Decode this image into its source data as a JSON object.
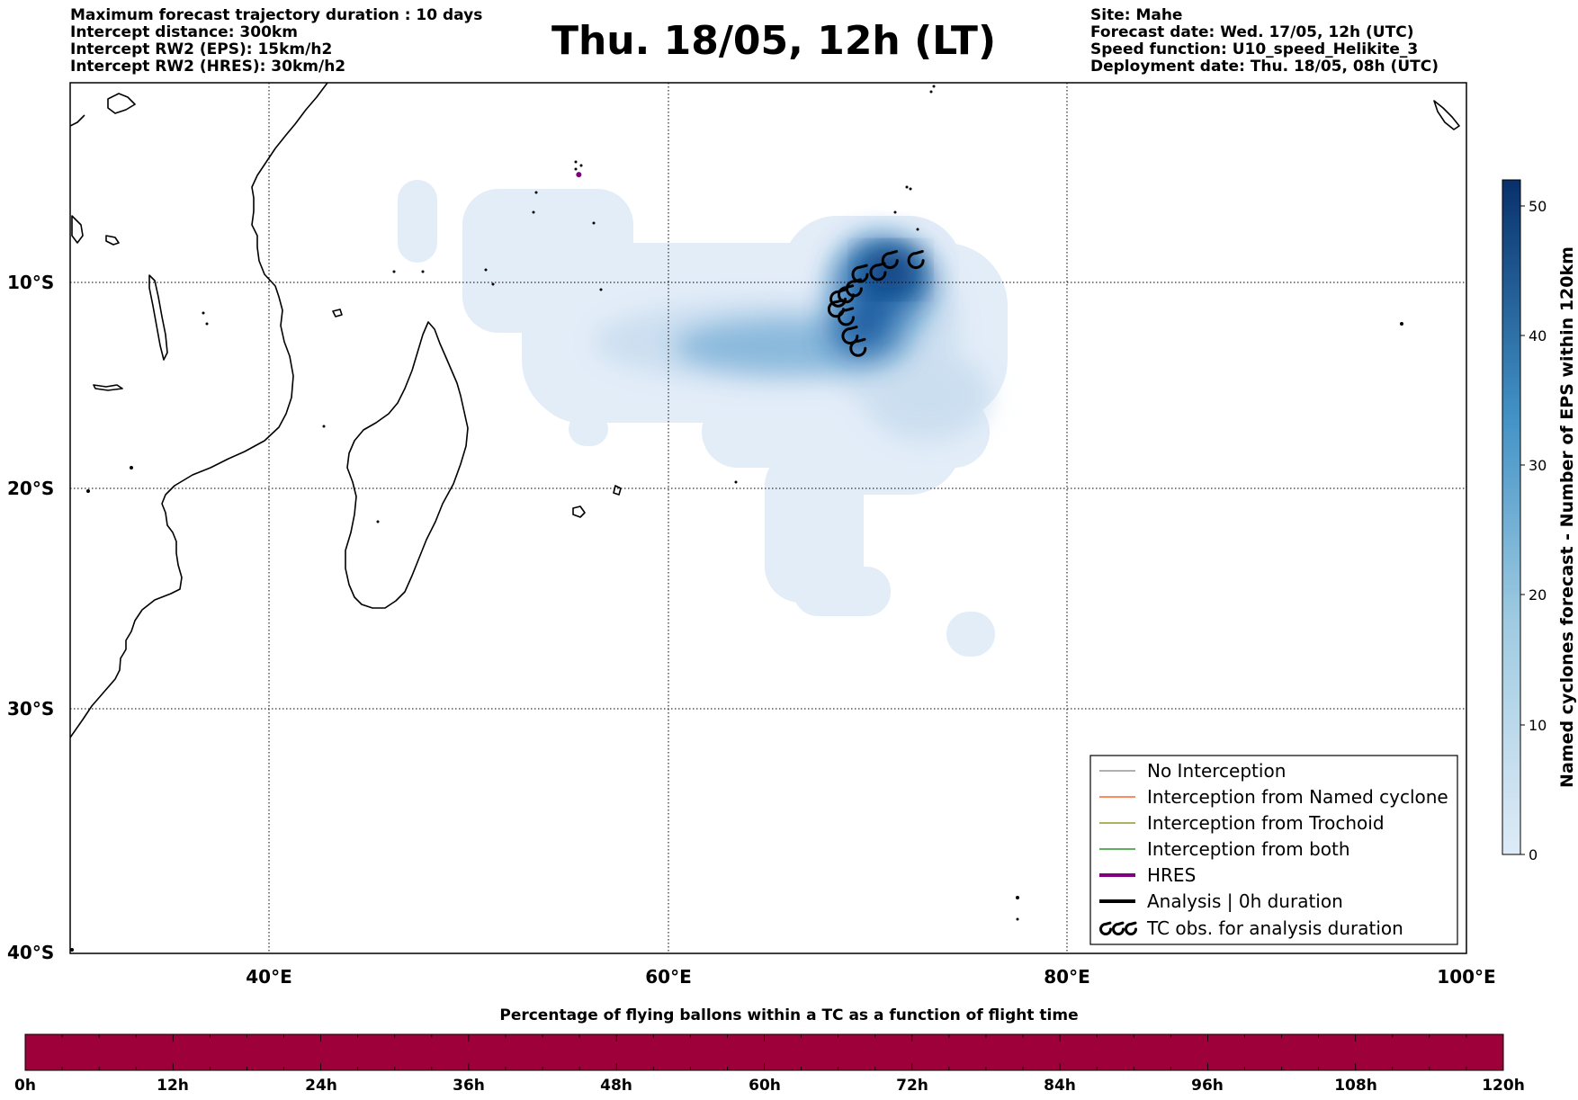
{
  "header_left": [
    "Maximum forecast trajectory duration : 10 days",
    "Intercept distance: 300km",
    "Intercept RW2 (EPS):  15km/h2",
    "Intercept RW2 (HRES): 30km/h2"
  ],
  "header_right": [
    "Site: Mahe",
    "Forecast date: Wed. 17/05, 12h (UTC)",
    "Speed function: U10_speed_Helikite_3",
    "Deployment date: Thu. 18/05, 08h (UTC)"
  ],
  "title": "Thu. 18/05, 12h (LT)",
  "map": {
    "lon_range": [
      30,
      100
    ],
    "lat_range": [
      -40,
      0
    ],
    "lon_ticks": [
      {
        "value": 40,
        "label": "40°E"
      },
      {
        "value": 60,
        "label": "60°E"
      },
      {
        "value": 80,
        "label": "80°E"
      },
      {
        "value": 100,
        "label": "100°E"
      }
    ],
    "lat_ticks": [
      {
        "value": -10,
        "label": "10°S"
      },
      {
        "value": -20,
        "label": "20°S"
      },
      {
        "value": -30,
        "label": "30°S"
      },
      {
        "value": -40,
        "label": "40°S"
      }
    ],
    "gridlines": "dotted",
    "tc_obs_positions": [
      {
        "lon": 72.4,
        "lat": -8.9
      },
      {
        "lon": 71.1,
        "lat": -8.9
      },
      {
        "lon": 70.5,
        "lat": -9.5
      },
      {
        "lon": 69.6,
        "lat": -9.6
      },
      {
        "lon": 69.3,
        "lat": -10.3
      },
      {
        "lon": 68.9,
        "lat": -10.6
      },
      {
        "lon": 68.5,
        "lat": -10.8
      },
      {
        "lon": 68.4,
        "lat": -11.3
      },
      {
        "lon": 68.9,
        "lat": -11.7
      },
      {
        "lon": 69.1,
        "lat": -12.6
      },
      {
        "lon": 69.5,
        "lat": -13.2
      }
    ]
  },
  "colorbar_right": {
    "label": "Named cyclones forecast - Number of EPS within 120km",
    "min": 0,
    "max": 52,
    "ticks": [
      "0",
      "10",
      "20",
      "30",
      "40",
      "50"
    ],
    "colors": [
      "#deebf7",
      "#08306b"
    ]
  },
  "legend": [
    {
      "label": "No Interception",
      "color": "#808080",
      "style": "thin"
    },
    {
      "label": "Interception from Named cyclone",
      "color": "#ff4500",
      "style": "thin"
    },
    {
      "label": "Interception from Trochoid",
      "color": "#808000",
      "style": "thin"
    },
    {
      "label": "Interception from both",
      "color": "#008000",
      "style": "thin"
    },
    {
      "label": "HRES",
      "color": "#800080",
      "style": "thick"
    },
    {
      "label": "Analysis | 0h duration",
      "color": "#000000",
      "style": "thick"
    },
    {
      "label": "TC obs. for analysis duration",
      "color": "#000000",
      "style": "symbols"
    }
  ],
  "bottom_bar": {
    "title": "Percentage of flying ballons within a TC as a function of flight time",
    "fill_color": "#9e003a",
    "ticks": [
      "0h",
      "12h",
      "24h",
      "36h",
      "48h",
      "60h",
      "72h",
      "84h",
      "96h",
      "108h",
      "120h"
    ]
  },
  "hres_marker": {
    "lon": 55.5,
    "lat": -4.6,
    "color": "#800080"
  }
}
